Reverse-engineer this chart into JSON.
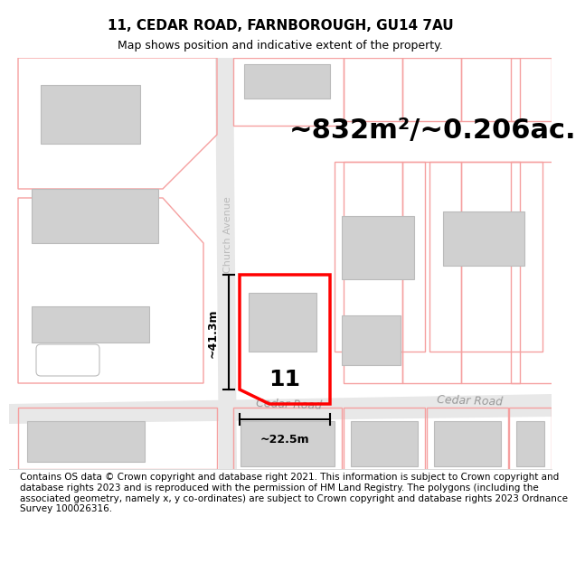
{
  "title": "11, CEDAR ROAD, FARNBOROUGH, GU14 7AU",
  "subtitle": "Map shows position and indicative extent of the property.",
  "area_text": "~832m²/~0.206ac.",
  "label_11": "11",
  "dim_height": "~41.3m",
  "dim_width": "~22.5m",
  "road_label_cedar_1": "Cedar Road",
  "road_label_cedar_2": "Cedar Road",
  "street_label": "Church Avenue",
  "footer": "Contains OS data © Crown copyright and database right 2021. This information is subject to Crown copyright and database rights 2023 and is reproduced with the permission of HM Land Registry. The polygons (including the associated geometry, namely x, y co-ordinates) are subject to Crown copyright and database rights 2023 Ordnance Survey 100026316.",
  "bg_color": "#ffffff",
  "map_bg": "#ffffff",
  "road_fill": "#e8e8e8",
  "plot_outline_color": "#ff0000",
  "neighbor_outline_color": "#f5a0a0",
  "building_fill": "#d0d0d0",
  "building_edge": "#bbbbbb",
  "title_fontsize": 11,
  "subtitle_fontsize": 9,
  "area_fontsize": 22,
  "footer_fontsize": 7.5,
  "dim_fontsize": 9,
  "road_label_fontsize": 9,
  "street_label_fontsize": 8
}
